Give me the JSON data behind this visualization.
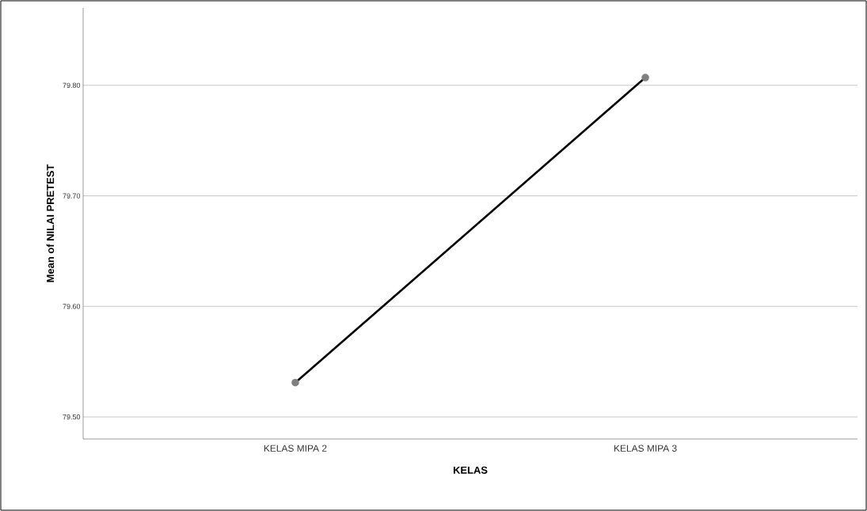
{
  "chart_data": {
    "type": "line",
    "xlabel": "KELAS",
    "ylabel": "Mean of NILAI PRETEST",
    "categories": [
      "KELAS MIPA 2",
      "KELAS MIPA 3"
    ],
    "series": [
      {
        "color": "#000000",
        "values": [
          79.531,
          79.807
        ]
      }
    ],
    "ylim": [
      79.48,
      79.87
    ],
    "yticks": [
      {
        "value": 79.5,
        "label": "79.50"
      },
      {
        "value": 79.6,
        "label": "79.60"
      },
      {
        "value": 79.7,
        "label": "79.70"
      },
      {
        "value": 79.8,
        "label": "79.80"
      }
    ],
    "grid": "y",
    "marker": "circle",
    "line_style": "solid"
  }
}
